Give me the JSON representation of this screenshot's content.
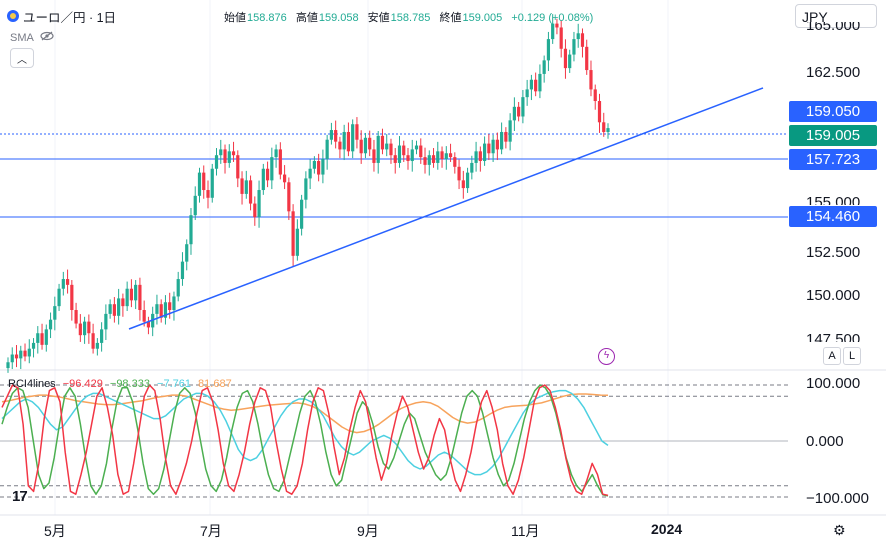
{
  "header": {
    "symbol_title": "ユーロ／円 · 1日",
    "ohlc": [
      {
        "label": "始値",
        "value": "158.876"
      },
      {
        "label": "高値",
        "value": "159.058"
      },
      {
        "label": "安値",
        "value": "158.785"
      },
      {
        "label": "終値",
        "value": "159.005"
      }
    ],
    "change": "+0.129 (+0.08%)",
    "indicator": "SMA",
    "currency": "JPY"
  },
  "colors": {
    "up": "#22ab94",
    "down": "#f23645",
    "line": "#2962ff",
    "current": "#089981",
    "rci_short": "#f23645",
    "rci_mid": "#4caf50",
    "rci_long": "#4dd0e1",
    "rci_avg": "#f7a35c"
  },
  "price_axis": {
    "ticks": [
      "165.000",
      "162.500",
      "155.000",
      "152.500",
      "150.000",
      "147.500"
    ],
    "tags": [
      {
        "name": "high",
        "value": "159.050",
        "color": "#2962ff"
      },
      {
        "name": "current",
        "value": "159.005",
        "color": "#089981"
      },
      {
        "name": "support",
        "value": "157.723",
        "color": "#2962ff"
      },
      {
        "name": "support2",
        "value": "154.460",
        "color": "#2962ff"
      }
    ]
  },
  "rci": {
    "title": "RCI4lines",
    "values": [
      {
        "value": "−96.429",
        "color": "#f23645"
      },
      {
        "value": "−98.333",
        "color": "#4caf50"
      },
      {
        "value": "−7.761",
        "color": "#4dd0e1"
      },
      {
        "value": "81.687",
        "color": "#f7a35c"
      }
    ],
    "axis": [
      "100.000",
      "0.000",
      "−100.000"
    ]
  },
  "x_axis": [
    "5月",
    "7月",
    "9月",
    "11月",
    "2024"
  ],
  "buttons": {
    "auto": "A",
    "log": "L"
  },
  "logo": "17",
  "chart_data": {
    "type": "candlestick",
    "ylim": [
      146.5,
      165
    ],
    "horizontal_lines": [
      159.05,
      159.005,
      157.723,
      154.46
    ],
    "trendline": [
      [
        0.145,
        148.3
      ],
      [
        0.86,
        162.2
      ]
    ],
    "closes": [
      146.9,
      147.3,
      147.1,
      147.5,
      147.2,
      147.6,
      147.9,
      148.4,
      147.8,
      148.6,
      149.1,
      149.8,
      150.7,
      151.2,
      150.9,
      149.6,
      148.9,
      148.3,
      149.0,
      148.4,
      147.6,
      147.9,
      148.6,
      149.4,
      149.9,
      149.3,
      150.2,
      149.8,
      150.7,
      150.1,
      150.9,
      149.6,
      149.0,
      148.7,
      149.4,
      149.9,
      149.2,
      150.0,
      149.6,
      150.3,
      151.2,
      152.1,
      153.0,
      154.5,
      155.5,
      156.7,
      155.8,
      155.4,
      156.9,
      157.6,
      157.9,
      157.2,
      157.8,
      157.6,
      156.4,
      155.6,
      156.3,
      155.1,
      154.4,
      155.8,
      156.9,
      156.3,
      157.5,
      157.9,
      156.6,
      156.2,
      154.7,
      152.4,
      153.8,
      155.3,
      156.4,
      156.9,
      157.3,
      156.6,
      157.4,
      158.4,
      158.9,
      158.3,
      157.9,
      158.8,
      157.8,
      159.2,
      158.4,
      157.7,
      158.5,
      157.9,
      157.2,
      158.6,
      157.9,
      158.2,
      157.6,
      157.2,
      158.1,
      157.6,
      157.3,
      157.9,
      158.1,
      157.5,
      157.1,
      157.6,
      157.2,
      157.8,
      157.4,
      157.7,
      157.5,
      157.0,
      156.3,
      155.9,
      156.7,
      157.2,
      157.8,
      157.3,
      158.2,
      157.7,
      158.4,
      157.9,
      158.8,
      158.3,
      159.4,
      160.1,
      159.6,
      160.6,
      161.0,
      161.5,
      160.9,
      161.8,
      162.5,
      163.6,
      164.4,
      164.2,
      163.1,
      162.1,
      162.8,
      163.6,
      163.9,
      163.2,
      162.0,
      161.0,
      160.4,
      159.3,
      158.8,
      159.0
    ]
  },
  "rci_data": {
    "short": [
      60,
      80,
      100,
      95,
      30,
      -80,
      -90,
      -40,
      40,
      90,
      95,
      70,
      -20,
      -90,
      -95,
      -60,
      -20,
      30,
      80,
      95,
      60,
      10,
      -60,
      -95,
      -90,
      -40,
      20,
      80,
      100,
      90,
      40,
      -30,
      -80,
      -95,
      -70,
      -40,
      0,
      50,
      90,
      95,
      70,
      20,
      -40,
      -80,
      -90,
      -60,
      -20,
      30,
      70,
      95,
      90,
      60,
      0,
      -50,
      -90,
      -95,
      -80,
      -40,
      20,
      70,
      95,
      90,
      50,
      -10,
      -60,
      -30,
      20,
      60,
      90,
      70,
      20,
      -30,
      -70,
      -40,
      10,
      50,
      80,
      60,
      20,
      -20,
      -50,
      -30,
      10,
      40,
      20,
      -30,
      -70,
      -90,
      -60,
      -20,
      30,
      70,
      90,
      60,
      20,
      -40,
      -80,
      -95,
      -70,
      -30,
      20,
      70,
      95,
      100,
      90,
      60,
      20,
      -30,
      -70,
      -90,
      -95,
      -70,
      -40,
      -60,
      -95,
      -97
    ],
    "mid": [
      30,
      60,
      85,
      95,
      90,
      60,
      0,
      -60,
      -85,
      -75,
      -30,
      30,
      80,
      95,
      80,
      30,
      -30,
      -80,
      -95,
      -80,
      -40,
      20,
      70,
      95,
      95,
      70,
      20,
      -40,
      -85,
      -95,
      -85,
      -50,
      0,
      50,
      85,
      95,
      85,
      50,
      0,
      -50,
      -80,
      -90,
      -70,
      -30,
      20,
      60,
      85,
      90,
      70,
      30,
      -20,
      -60,
      -85,
      -90,
      -70,
      -30,
      10,
      50,
      80,
      90,
      70,
      30,
      -20,
      -60,
      -80,
      -70,
      -30,
      10,
      50,
      70,
      60,
      30,
      -10,
      -40,
      -50,
      -30,
      0,
      30,
      50,
      40,
      10,
      -20,
      -40,
      -60,
      -70,
      -60,
      -30,
      10,
      50,
      80,
      90,
      80,
      50,
      10,
      -30,
      -60,
      -80,
      -70,
      -40,
      0,
      40,
      70,
      90,
      100,
      95,
      80,
      50,
      10,
      -30,
      -60,
      -80,
      -90,
      -75,
      -60,
      -80,
      -96,
      -98
    ],
    "long": [
      40,
      50,
      60,
      70,
      75,
      70,
      60,
      45,
      30,
      20,
      25,
      40,
      55,
      70,
      80,
      85,
      85,
      80,
      75,
      70,
      65,
      60,
      55,
      50,
      45,
      40,
      40,
      45,
      55,
      65,
      75,
      80,
      85,
      85,
      80,
      70,
      55,
      35,
      10,
      -15,
      -30,
      -35,
      -30,
      -15,
      5,
      25,
      45,
      60,
      70,
      75,
      75,
      70,
      60,
      45,
      25,
      5,
      -10,
      -20,
      -25,
      -20,
      -10,
      0,
      5,
      10,
      5,
      -5,
      -20,
      -35,
      -45,
      -50,
      -45,
      -35,
      -25,
      -20,
      -25,
      -35,
      -45,
      -55,
      -60,
      -60,
      -55,
      -45,
      -30,
      -10,
      10,
      30,
      50,
      65,
      75,
      80,
      85,
      88,
      90,
      90,
      85,
      75,
      60,
      40,
      20,
      0,
      -7.8
    ],
    "avg": [
      70,
      72,
      75,
      78,
      80,
      82,
      82,
      80,
      78,
      75,
      72,
      70,
      68,
      66,
      65,
      65,
      66,
      68,
      70,
      72,
      75,
      78,
      80,
      82,
      82,
      80,
      75,
      70,
      65,
      60,
      57,
      55,
      56,
      58,
      60,
      62,
      64,
      65,
      66,
      67,
      68,
      66,
      62,
      55,
      45,
      35,
      25,
      18,
      15,
      17,
      22,
      30,
      40,
      50,
      58,
      64,
      68,
      70,
      68,
      62,
      52,
      42,
      35,
      32,
      34,
      40,
      48,
      55,
      60,
      62,
      63,
      64,
      66,
      68,
      72,
      76,
      80,
      83,
      84,
      84,
      83,
      82,
      81.7
    ]
  }
}
